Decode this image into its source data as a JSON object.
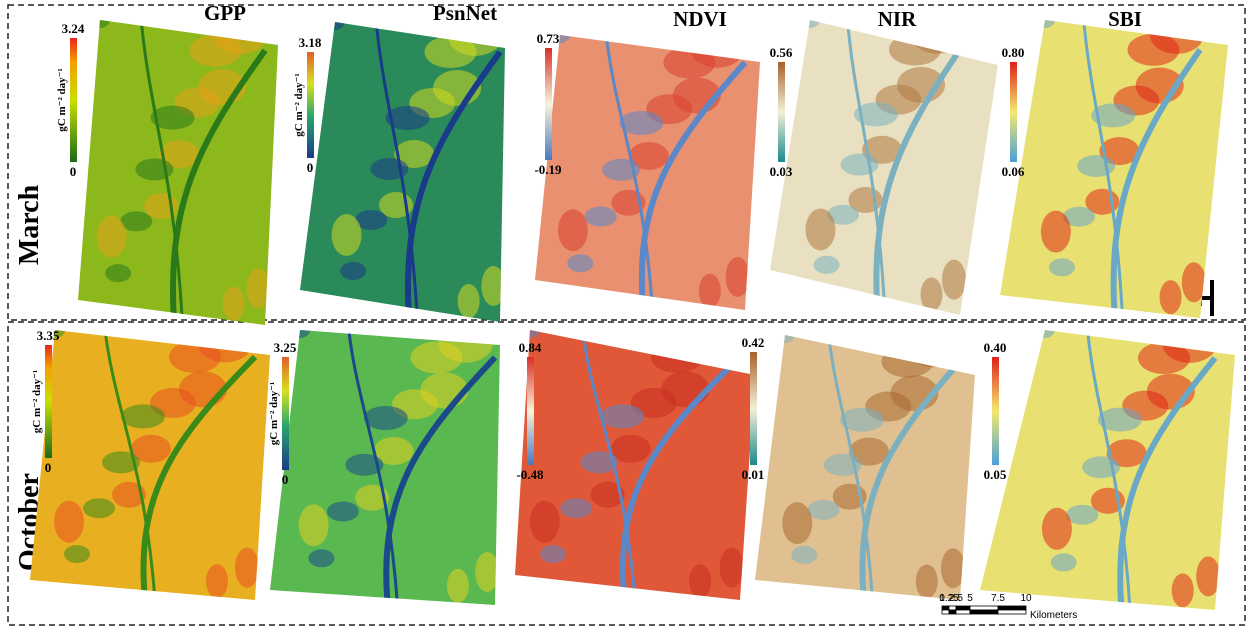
{
  "columns": [
    "GPP",
    "PsnNet",
    "NDVI",
    "NIR",
    "SBI"
  ],
  "rows": [
    {
      "label": "March",
      "legends": [
        {
          "max": "3.24",
          "min": "0",
          "unit": "gC m⁻² day⁻¹"
        },
        {
          "max": "3.18",
          "min": "0",
          "unit": "gC m⁻² day⁻¹"
        },
        {
          "max": "0.73",
          "min": "-0.19"
        },
        {
          "max": "0.56",
          "min": "0.03"
        },
        {
          "max": "0.80",
          "min": "0.06"
        }
      ]
    },
    {
      "label": "October",
      "legends": [
        {
          "max": "3.35",
          "min": "0",
          "unit": "gC m⁻² day⁻¹"
        },
        {
          "max": "3.25",
          "min": "0",
          "unit": "gC m⁻² day⁻¹"
        },
        {
          "max": "0.84",
          "min": "-0.48"
        },
        {
          "max": "0.42",
          "min": "0.01"
        },
        {
          "max": "0.40",
          "min": "0.05"
        }
      ]
    }
  ],
  "scale_bar": {
    "ticks": [
      "0",
      "1.25",
      "2.5",
      "5",
      "7.5",
      "10"
    ],
    "unit": "Kilometers"
  }
}
